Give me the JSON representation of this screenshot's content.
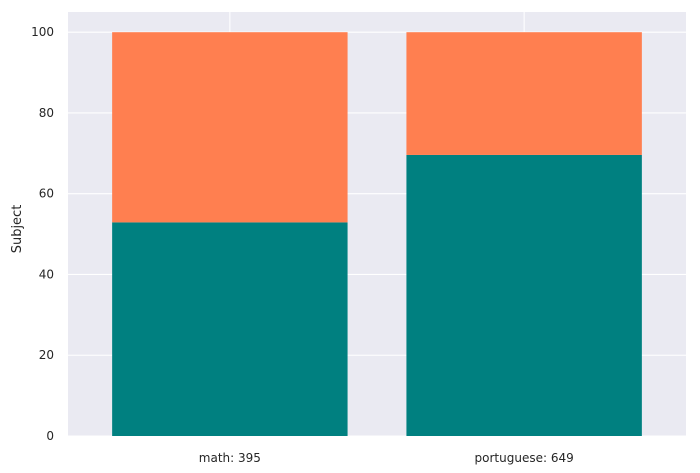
{
  "chart_data": {
    "type": "bar",
    "stacked": true,
    "categories": [
      "math: 395",
      "portuguese: 649"
    ],
    "series": [
      {
        "color": "#008080",
        "values": [
          52.9,
          69.6
        ]
      },
      {
        "color": "#ff7f50",
        "values": [
          47.1,
          30.4
        ]
      }
    ],
    "xlabel": "",
    "ylabel": "Subject",
    "ylim": [
      0,
      105
    ],
    "yticks": [
      0,
      20,
      40,
      60,
      80,
      100
    ],
    "grid": true,
    "background": "#eaeaf2"
  }
}
